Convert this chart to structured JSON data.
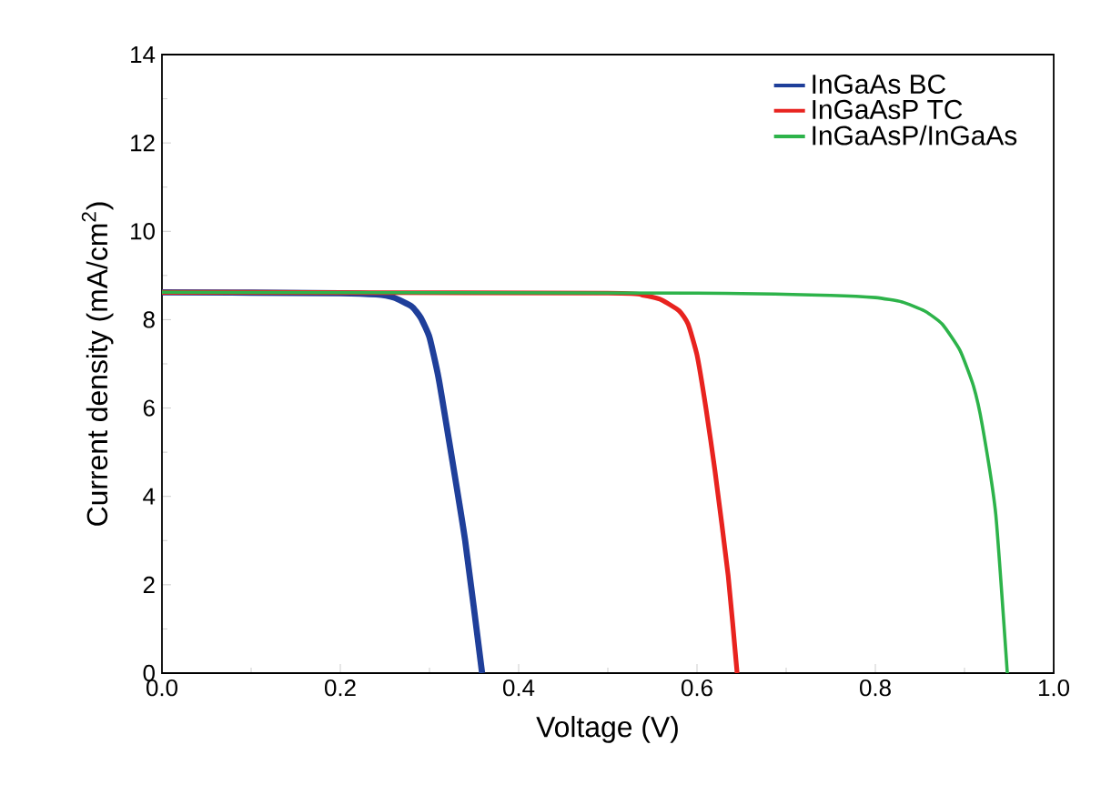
{
  "chart_data": {
    "type": "line",
    "xlabel": "Voltage (V)",
    "ylabel": "Current density (mA/cm$^{2}$)",
    "xlim": [
      0,
      1.0
    ],
    "ylim": [
      0,
      14
    ],
    "xticks": [
      {
        "value": 0,
        "label": "0.0"
      },
      {
        "value": 0.2,
        "label": "0.2"
      },
      {
        "value": 0.4,
        "label": "0.4"
      },
      {
        "value": 0.6,
        "label": "0.6"
      },
      {
        "value": 0.8,
        "label": "0.8"
      },
      {
        "value": 1.0,
        "label": "1.0"
      }
    ],
    "yticks": [
      0,
      2,
      4,
      6,
      8,
      10,
      12,
      14
    ],
    "legend": "top right",
    "grid": false,
    "series": [
      {
        "name": "InGaAs BC",
        "color": "#1f3f9a",
        "x": [
          0,
          0.2,
          0.24,
          0.26,
          0.28,
          0.29,
          0.3,
          0.31,
          0.32,
          0.34,
          0.359
        ],
        "values": [
          8.62,
          8.6,
          8.57,
          8.5,
          8.3,
          8.05,
          7.6,
          6.7,
          5.5,
          3.0,
          0
        ]
      },
      {
        "name": "InGaAsP TC",
        "color": "#e8231f",
        "x": [
          0,
          0.5,
          0.54,
          0.56,
          0.58,
          0.59,
          0.6,
          0.61,
          0.62,
          0.635,
          0.645
        ],
        "values": [
          8.62,
          8.6,
          8.55,
          8.45,
          8.2,
          7.9,
          7.2,
          6.0,
          4.6,
          2.2,
          0
        ]
      },
      {
        "name": "InGaAsP/InGaAs",
        "color": "#2db34a",
        "x": [
          0,
          0.6,
          0.75,
          0.8,
          0.83,
          0.855,
          0.875,
          0.895,
          0.91,
          0.92,
          0.935,
          0.948
        ],
        "values": [
          8.62,
          8.6,
          8.55,
          8.5,
          8.4,
          8.2,
          7.9,
          7.3,
          6.5,
          5.6,
          3.6,
          0
        ]
      }
    ]
  }
}
